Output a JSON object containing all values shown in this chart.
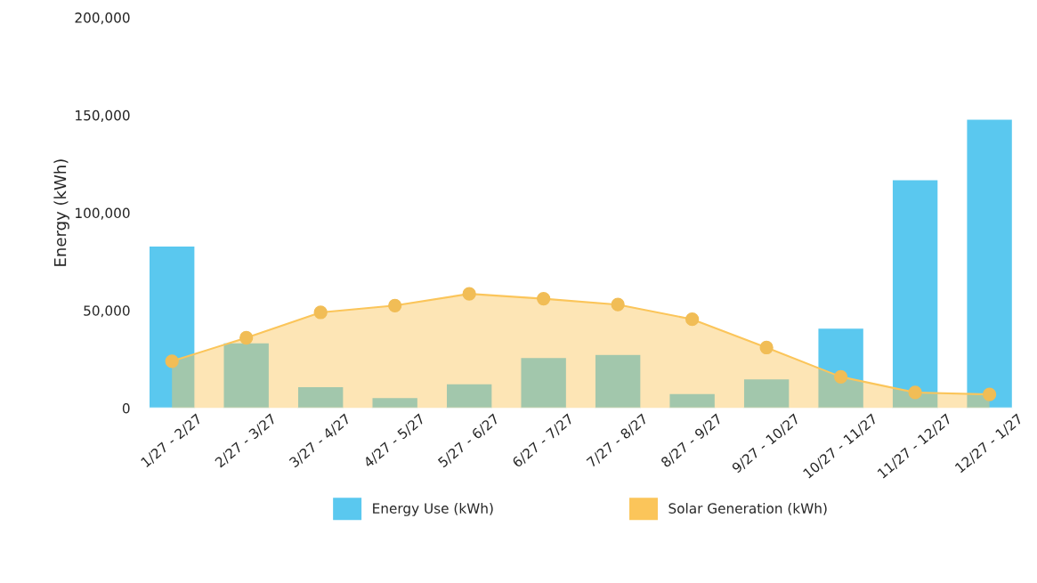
{
  "chart_data": {
    "type": "bar",
    "ylabel": "Energy (kWh)",
    "categories": [
      "1/27 - 2/27",
      "2/27 - 3/27",
      "3/27 - 4/27",
      "4/27 - 5/27",
      "5/27 - 6/27",
      "6/27 - 7/27",
      "7/27 - 8/27",
      "8/27 - 9/27",
      "9/27 - 10/27",
      "10/27 - 11/27",
      "11/27 - 12/27",
      "12/27 - 1/27"
    ],
    "series": [
      {
        "name": "Energy Use (kWh)",
        "color": "#5ac8ef",
        "values": [
          83000,
          33500,
          11000,
          5500,
          12500,
          26000,
          27500,
          7500,
          15000,
          41000,
          117000,
          148000
        ]
      },
      {
        "name": "Solar Generation (kWh)",
        "type": "area",
        "color": "#fbc55a",
        "marker": "circle",
        "values": [
          24000,
          36000,
          49000,
          52500,
          58500,
          56000,
          53000,
          45500,
          31000,
          16000,
          8000,
          7000
        ]
      }
    ],
    "ylim": [
      0,
      200000
    ],
    "yticks": [
      {
        "value": 0,
        "label": "0"
      },
      {
        "value": 50000,
        "label": "50,000"
      },
      {
        "value": 100000,
        "label": "100,000"
      },
      {
        "value": 150000,
        "label": "150,000"
      },
      {
        "value": 200000,
        "label": "200,000"
      }
    ],
    "grid": false,
    "legend": "bottom"
  }
}
